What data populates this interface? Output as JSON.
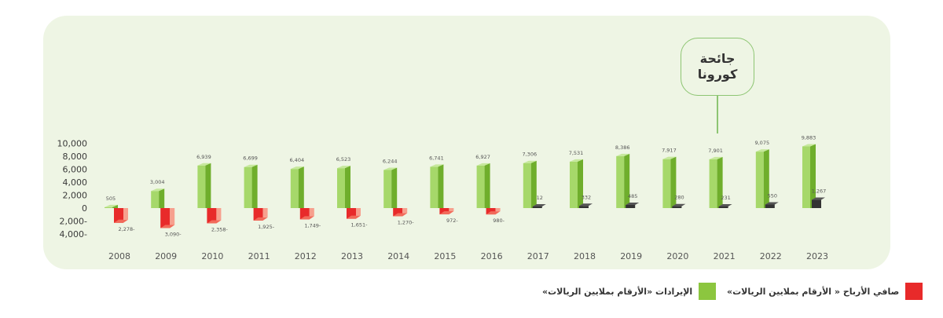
{
  "chart_data": {
    "type": "bar",
    "categories": [
      "2008",
      "2009",
      "2010",
      "2011",
      "2012",
      "2013",
      "2014",
      "2015",
      "2016",
      "2017",
      "2018",
      "2019",
      "2020",
      "2021",
      "2022",
      "2023"
    ],
    "series": [
      {
        "name": "الإيرادات «الأرقام بملايين الريالات»",
        "color": "#8cc63f",
        "values": [
          505,
          3004,
          6939,
          6699,
          6404,
          6523,
          6244,
          6741,
          6927,
          7306,
          7531,
          8386,
          7917,
          7901,
          9075,
          9883
        ],
        "labels": [
          "505",
          "3,004",
          "6,939",
          "6,699",
          "6,404",
          "6,523",
          "6,244",
          "6,741",
          "6,927",
          "7,306",
          "7,531",
          "8,386",
          "7,917",
          "7,901",
          "9,075",
          "9,883"
        ]
      },
      {
        "name": "صافي الأرباح « الأرقام بملايين الريالات»",
        "color": "#e82a2a",
        "positive_color": "#333333",
        "values": [
          -2278,
          -3090,
          -2358,
          -1925,
          -1749,
          -1651,
          -1270,
          -972,
          -980,
          12,
          332,
          485,
          280,
          231,
          550,
          1267
        ],
        "labels": [
          "2,278-",
          "3,090-",
          "2,358-",
          "1,925-",
          "1,749-",
          "1,651-",
          "1,270-",
          "972-",
          "980-",
          "12",
          "332",
          "485",
          "280",
          "231",
          "550",
          "1,267"
        ]
      }
    ],
    "y_ticks": [
      {
        "value": 10000,
        "label": "10,000"
      },
      {
        "value": 8000,
        "label": "8,000"
      },
      {
        "value": 6000,
        "label": "6,000"
      },
      {
        "value": 4000,
        "label": "4,000"
      },
      {
        "value": 2000,
        "label": "2,000"
      },
      {
        "value": 0,
        "label": "0"
      },
      {
        "value": -2000,
        "label": "2,000-"
      },
      {
        "value": -4000,
        "label": "4,000-"
      }
    ],
    "ylim": [
      -4000,
      10000
    ],
    "grid": false,
    "legend_position": "bottom",
    "annotation": {
      "lines": [
        "جائحة",
        "كورونا"
      ],
      "category": "2021"
    }
  },
  "legend": {
    "revenue_label": "الإيرادات «الأرقام بملايين الريالات»",
    "profit_label": "صافي الأرباح « الأرقام بملايين الريالات»"
  },
  "callout": {
    "line1": "جائحة",
    "line2": "كورونا"
  }
}
